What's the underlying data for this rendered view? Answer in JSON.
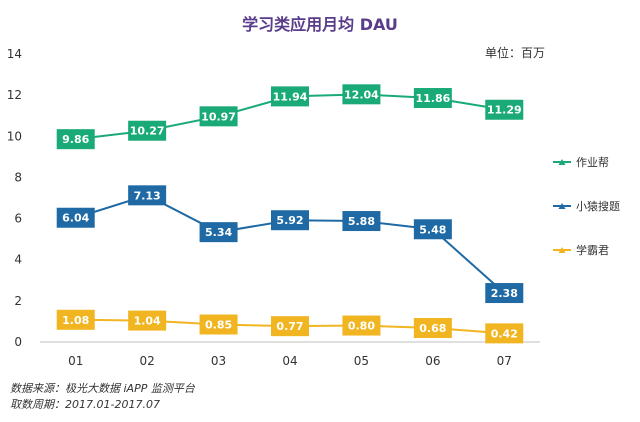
{
  "chart_data": {
    "type": "line",
    "title": "学习类应用月均 DAU",
    "unit_label": "单位：百万",
    "categories": [
      "01",
      "02",
      "03",
      "04",
      "05",
      "06",
      "07"
    ],
    "ylim": [
      0,
      14
    ],
    "yticks": [
      0,
      2,
      4,
      6,
      8,
      10,
      12,
      14
    ],
    "grid": false,
    "legend_position": "right",
    "series": [
      {
        "name": "作业帮",
        "color": "#1aaa78",
        "values": [
          9.86,
          10.27,
          10.97,
          11.94,
          12.04,
          11.86,
          11.29
        ],
        "labels": [
          "9.86",
          "10.27",
          "10.97",
          "11.94",
          "12.04",
          "11.86",
          "11.29"
        ]
      },
      {
        "name": "小猿搜题",
        "color": "#1f6aa5",
        "values": [
          6.04,
          7.13,
          5.34,
          5.92,
          5.88,
          5.48,
          2.38
        ],
        "labels": [
          "6.04",
          "7.13",
          "5.34",
          "5.92",
          "5.88",
          "5.48",
          "2.38"
        ]
      },
      {
        "name": "学霸君",
        "color": "#f0b521",
        "values": [
          1.08,
          1.04,
          0.85,
          0.77,
          0.8,
          0.68,
          0.42
        ],
        "labels": [
          "1.08",
          "1.04",
          "0.85",
          "0.77",
          "0.80",
          "0.68",
          "0.42"
        ]
      }
    ],
    "source_lines": [
      "数据来源：极光大数据 iAPP 监测平台",
      "取数周期：2017.01-2017.07"
    ]
  }
}
